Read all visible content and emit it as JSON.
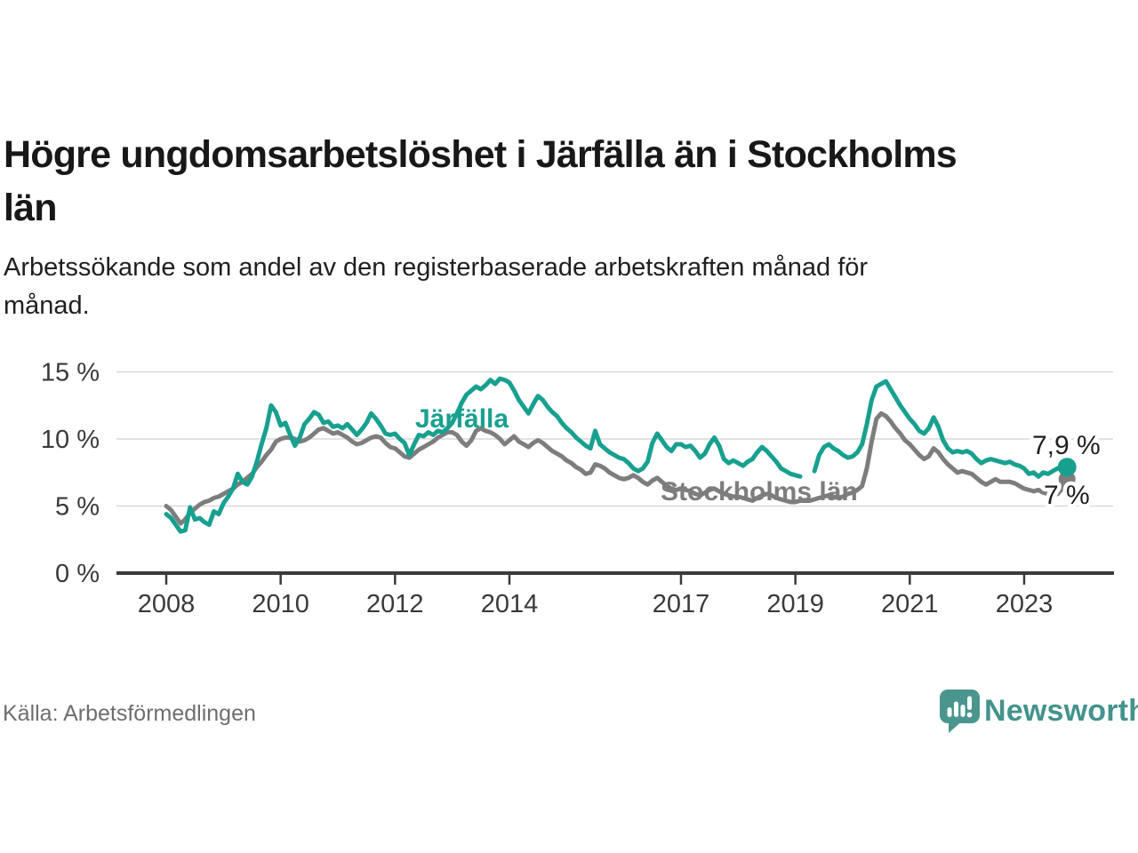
{
  "header": {
    "title": "Högre ungdomsarbetslöshet i Järfälla än i Stockholms län",
    "title_lines": [
      "Högre ungdomsarbetslöshet i Järfälla än i Stockholms",
      "län"
    ],
    "subtitle": "Arbetssökande som andel av den registerbaserade arbetskraften månad för månad.",
    "subtitle_lines": [
      "Arbetssökande som andel av den registerbaserade arbetskraften månad för",
      "månad."
    ]
  },
  "footer": {
    "source": "Källa: Arbetsförmedlingen",
    "brand": "Newsworthy",
    "brand_icon": "newsworthy-speech-bubble-bar-chart-icon",
    "brand_color": "#43938d"
  },
  "colors": {
    "jarfalla": "#18a08f",
    "stockholm": "#7d7d7d",
    "axis": "#3b3b3b",
    "grid": "#d9d9d9",
    "end_label_text": "#1f1f1f"
  },
  "chart_data": {
    "type": "line",
    "title": "Högre ungdomsarbetslöshet i Järfälla än i Stockholms län",
    "subtitle": "Arbetssökande som andel av den registerbaserade arbetskraften månad för månad.",
    "x_start_year": 2008,
    "x_step_months": 1,
    "x_end": "2023-10",
    "x_ticks": [
      2008,
      2010,
      2012,
      2014,
      2017,
      2019,
      2021,
      2023
    ],
    "y_ticks": [
      {
        "value": 15,
        "label": "15 %"
      },
      {
        "value": 10,
        "label": "10 %"
      },
      {
        "value": 5,
        "label": "5 %"
      },
      {
        "value": 0,
        "label": "0 %"
      }
    ],
    "ylim": [
      0,
      16.5
    ],
    "grid": "horizontal",
    "legend_position": "inline-labels",
    "note": "null values = data gap early 2019",
    "series": [
      {
        "name": "Järfälla",
        "color": "#18a08f",
        "end_label": "7,9 %",
        "end_value": 7.9,
        "values": [
          4.4,
          4.1,
          3.6,
          3.1,
          3.2,
          4.9,
          4.0,
          4.1,
          3.8,
          3.6,
          4.6,
          4.4,
          5.2,
          5.7,
          6.3,
          7.4,
          6.8,
          6.6,
          7.2,
          8.3,
          9.6,
          10.8,
          12.5,
          12.0,
          11.0,
          11.2,
          10.3,
          9.5,
          10.1,
          11.1,
          11.5,
          12.0,
          11.8,
          11.2,
          11.3,
          10.9,
          11.0,
          10.8,
          11.1,
          10.7,
          10.3,
          10.7,
          11.2,
          11.9,
          11.5,
          11.0,
          10.4,
          10.3,
          10.4,
          10.0,
          9.7,
          8.8,
          9.6,
          10.3,
          10.2,
          10.5,
          10.3,
          10.6,
          10.5,
          10.8,
          11.2,
          11.9,
          12.7,
          13.3,
          13.6,
          13.9,
          13.7,
          14.0,
          14.4,
          14.1,
          14.5,
          14.4,
          14.2,
          13.6,
          12.9,
          12.4,
          11.9,
          12.6,
          13.2,
          12.9,
          12.4,
          12.0,
          11.7,
          11.2,
          10.8,
          10.5,
          10.1,
          9.8,
          9.5,
          9.3,
          10.6,
          9.6,
          9.3,
          9.0,
          8.8,
          8.6,
          8.5,
          8.2,
          7.8,
          7.6,
          7.8,
          8.3,
          9.7,
          10.4,
          9.9,
          9.4,
          9.1,
          9.6,
          9.6,
          9.4,
          9.5,
          9.1,
          8.6,
          8.9,
          9.6,
          10.1,
          9.5,
          8.5,
          8.2,
          8.4,
          8.2,
          8.0,
          8.3,
          8.5,
          9.0,
          9.4,
          9.1,
          8.7,
          8.3,
          7.8,
          7.6,
          7.4,
          7.3,
          7.2,
          null,
          null,
          7.6,
          8.8,
          9.4,
          9.6,
          9.3,
          9.1,
          8.8,
          8.6,
          8.7,
          9.0,
          9.6,
          11.1,
          12.9,
          13.9,
          14.1,
          14.3,
          13.7,
          13.1,
          12.5,
          12.0,
          11.5,
          11.1,
          10.6,
          10.4,
          10.8,
          11.6,
          10.9,
          9.9,
          9.3,
          9.0,
          9.1,
          9.0,
          9.1,
          8.9,
          8.5,
          8.2,
          8.4,
          8.5,
          8.4,
          8.3,
          8.2,
          8.3,
          8.1,
          8.0,
          7.8,
          7.4,
          7.5,
          7.2,
          7.5,
          7.4,
          7.6,
          7.8,
          7.9,
          7.9
        ]
      },
      {
        "name": "Stockholms län",
        "color": "#7d7d7d",
        "end_label": "7 %",
        "end_value": 7.0,
        "values": [
          5.0,
          4.7,
          4.2,
          3.7,
          4.0,
          4.5,
          4.8,
          5.1,
          5.3,
          5.4,
          5.6,
          5.7,
          5.9,
          6.1,
          6.3,
          6.6,
          6.8,
          7.1,
          7.4,
          7.9,
          8.3,
          8.8,
          9.2,
          9.8,
          10.0,
          10.1,
          10.1,
          10.0,
          9.8,
          9.9,
          10.1,
          10.4,
          10.7,
          10.8,
          10.6,
          10.4,
          10.5,
          10.3,
          10.1,
          9.8,
          9.6,
          9.7,
          9.9,
          10.1,
          10.2,
          10.1,
          9.7,
          9.4,
          9.3,
          9.0,
          8.7,
          8.6,
          8.9,
          9.2,
          9.4,
          9.6,
          9.8,
          10.1,
          10.3,
          10.5,
          10.5,
          10.3,
          9.8,
          9.5,
          9.9,
          10.6,
          10.8,
          10.6,
          10.5,
          10.3,
          10.0,
          9.6,
          9.9,
          10.2,
          9.8,
          9.6,
          9.4,
          9.7,
          9.9,
          9.7,
          9.4,
          9.1,
          8.9,
          8.7,
          8.4,
          8.2,
          7.9,
          7.7,
          7.4,
          7.5,
          8.1,
          8.0,
          7.8,
          7.5,
          7.3,
          7.1,
          7.0,
          7.1,
          7.3,
          7.1,
          6.8,
          6.6,
          6.9,
          7.1,
          6.8,
          6.5,
          6.3,
          6.2,
          6.3,
          6.2,
          6.1,
          5.9,
          5.8,
          6.0,
          6.2,
          6.3,
          6.1,
          5.9,
          5.8,
          5.7,
          5.7,
          5.6,
          5.5,
          5.4,
          5.6,
          5.8,
          5.9,
          5.8,
          5.6,
          5.5,
          5.4,
          5.3,
          5.3,
          5.4,
          5.4,
          5.4,
          5.5,
          5.6,
          5.7,
          5.8,
          5.7,
          5.6,
          5.7,
          5.9,
          6.0,
          6.2,
          6.5,
          7.8,
          9.8,
          11.5,
          11.9,
          11.7,
          11.3,
          10.8,
          10.4,
          9.9,
          9.6,
          9.2,
          8.8,
          8.5,
          8.7,
          9.3,
          9.0,
          8.5,
          8.1,
          7.8,
          7.5,
          7.6,
          7.5,
          7.4,
          7.1,
          6.8,
          6.6,
          6.8,
          7.0,
          6.8,
          6.8,
          6.8,
          6.7,
          6.5,
          6.3,
          6.2,
          6.1,
          6.2,
          6.0,
          5.9,
          5.8,
          5.9,
          6.3,
          7.0
        ]
      }
    ]
  }
}
